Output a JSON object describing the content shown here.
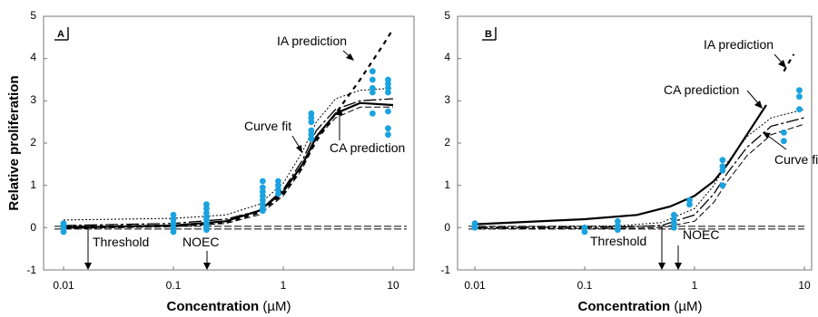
{
  "colors": {
    "points": "#1aa3e0",
    "lines": "#000000",
    "frame": "#777777"
  },
  "chart_data": [
    {
      "panel": "A",
      "type": "scatter",
      "xscale": "log",
      "xlim": [
        0.0075,
        13
      ],
      "ylim": [
        -1,
        5
      ],
      "xticks": [
        "0.01",
        "0.1",
        "1",
        "10"
      ],
      "yticks": [
        "-1",
        "0",
        "1",
        "2",
        "3",
        "4",
        "5"
      ],
      "ylabel": "Relative proliferation",
      "xlabel": {
        "bold": "Concentration",
        "rest": " (µM)"
      },
      "points": {
        "x": [
          0.01,
          0.01,
          0.01,
          0.01,
          0.1,
          0.1,
          0.1,
          0.1,
          0.1,
          0.2,
          0.2,
          0.2,
          0.2,
          0.2,
          0.2,
          0.2,
          0.2,
          0.2,
          0.65,
          0.65,
          0.65,
          0.65,
          0.65,
          0.65,
          0.65,
          0.65,
          0.9,
          0.9,
          0.9,
          0.9,
          1.8,
          1.8,
          1.8,
          1.8,
          1.8,
          1.8,
          6.5,
          6.5,
          6.5,
          6.5,
          6.5,
          9,
          9,
          9,
          9,
          9,
          9,
          9
        ],
        "y": [
          0.1,
          0.05,
          0,
          -0.1,
          0.3,
          0.2,
          0.1,
          0,
          -0.1,
          0.55,
          0.45,
          0.35,
          0.25,
          0.2,
          0.1,
          0.05,
          0,
          -0.05,
          1.1,
          0.95,
          0.85,
          0.75,
          0.65,
          0.55,
          0.45,
          0.4,
          1.1,
          1.0,
          0.9,
          0.8,
          2.7,
          2.6,
          2.5,
          2.3,
          2.2,
          2.1,
          3.7,
          3.5,
          3.3,
          3.2,
          2.7,
          3.5,
          3.4,
          3.3,
          3.2,
          2.75,
          2.35,
          2.2
        ]
      },
      "curves": {
        "curve_fit": {
          "x": [
            0.01,
            0.1,
            0.3,
            0.6,
            1,
            1.5,
            2,
            3,
            5,
            10
          ],
          "y": [
            0.05,
            0.1,
            0.2,
            0.4,
            0.9,
            1.6,
            2.3,
            2.8,
            3.0,
            3.05
          ]
        },
        "ca_prediction": {
          "x": [
            0.01,
            0.1,
            0.3,
            0.6,
            1,
            1.5,
            2,
            3,
            5,
            10
          ],
          "y": [
            0,
            0.05,
            0.15,
            0.4,
            0.85,
            1.5,
            2.15,
            2.7,
            2.95,
            2.9
          ]
        },
        "ia_prediction": {
          "x": [
            0.01,
            0.1,
            0.3,
            0.6,
            1,
            1.5,
            2,
            3,
            5,
            8,
            10
          ],
          "y": [
            0.02,
            0.05,
            0.12,
            0.35,
            0.8,
            1.45,
            2.05,
            2.7,
            3.5,
            4.3,
            4.7
          ]
        },
        "ci_upper": {
          "x": [
            0.01,
            0.1,
            0.3,
            0.6,
            1,
            1.5,
            2,
            3,
            5,
            10
          ],
          "y": [
            0.18,
            0.22,
            0.3,
            0.55,
            1.05,
            1.8,
            2.5,
            3.05,
            3.25,
            3.3
          ]
        },
        "ci_lower": {
          "x": [
            0.01,
            0.1,
            0.3,
            0.6,
            1,
            1.5,
            2,
            3,
            5,
            10
          ],
          "y": [
            -0.02,
            0.02,
            0.1,
            0.3,
            0.75,
            1.4,
            2.1,
            2.6,
            2.85,
            2.85
          ]
        },
        "threshold": {
          "y": 0
        }
      },
      "annotations": [
        {
          "text": "IA prediction"
        },
        {
          "text": "Curve fit"
        },
        {
          "text": "CA prediction"
        },
        {
          "text": "Threshold"
        },
        {
          "text": "NOEC"
        }
      ],
      "markers": {
        "threshold_x": 0.017,
        "noec_x": 0.2
      }
    },
    {
      "panel": "B",
      "type": "scatter",
      "xscale": "log",
      "xlim": [
        0.0075,
        13
      ],
      "ylim": [
        -1,
        5
      ],
      "xticks": [
        "0.01",
        "0.1",
        "1",
        "10"
      ],
      "yticks": [
        "-1",
        "0",
        "1",
        "2",
        "3",
        "4",
        "5"
      ],
      "xlabel": {
        "bold": "Concentration",
        "rest": " (µM)"
      },
      "points": {
        "x": [
          0.01,
          0.01,
          0.01,
          0.1,
          0.1,
          0.2,
          0.2,
          0.2,
          0.65,
          0.65,
          0.65,
          0.65,
          0.9,
          0.9,
          1.8,
          1.8,
          1.8,
          1.8,
          6.5,
          6.5,
          9,
          9,
          9
        ],
        "y": [
          0.1,
          0.05,
          0,
          0,
          -0.1,
          0.15,
          0.05,
          -0.05,
          0.3,
          0.2,
          0.1,
          0,
          0.65,
          0.55,
          1.6,
          1.45,
          1.35,
          1.0,
          2.25,
          2.05,
          3.25,
          3.1,
          2.8
        ]
      },
      "curves": {
        "ca_prediction": {
          "x": [
            0.01,
            0.1,
            0.3,
            0.6,
            1,
            1.5,
            2,
            3,
            4.5
          ],
          "y": [
            0.08,
            0.2,
            0.3,
            0.5,
            0.75,
            1.1,
            1.5,
            2.2,
            2.9
          ]
        },
        "curve_fit": {
          "x": [
            0.01,
            0.2,
            0.5,
            1,
            1.5,
            2,
            3,
            5,
            10
          ],
          "y": [
            0,
            0.01,
            0.05,
            0.3,
            0.8,
            1.3,
            1.9,
            2.4,
            2.6
          ]
        },
        "ci_upper": {
          "x": [
            0.01,
            0.2,
            0.5,
            1,
            1.5,
            2,
            3,
            5,
            10
          ],
          "y": [
            0.02,
            0.04,
            0.12,
            0.45,
            1.0,
            1.55,
            2.15,
            2.6,
            2.8
          ]
        },
        "ci_lower": {
          "x": [
            0.01,
            0.2,
            0.5,
            1,
            1.5,
            2,
            3,
            5,
            10
          ],
          "y": [
            -0.02,
            -0.02,
            0.0,
            0.15,
            0.6,
            1.1,
            1.7,
            2.2,
            2.45
          ]
        },
        "ia_prediction": {
          "x": [
            6.5,
            7.2,
            8.0
          ],
          "y": [
            3.7,
            3.9,
            4.1
          ]
        },
        "threshold": {
          "y": 0
        }
      },
      "annotations": [
        {
          "text": "IA prediction"
        },
        {
          "text": "CA prediction"
        },
        {
          "text": "Curve fit"
        },
        {
          "text": "Threshold"
        },
        {
          "text": "NOEC"
        }
      ],
      "markers": {
        "threshold_x": 0.5,
        "noec_x": 0.7
      }
    }
  ]
}
